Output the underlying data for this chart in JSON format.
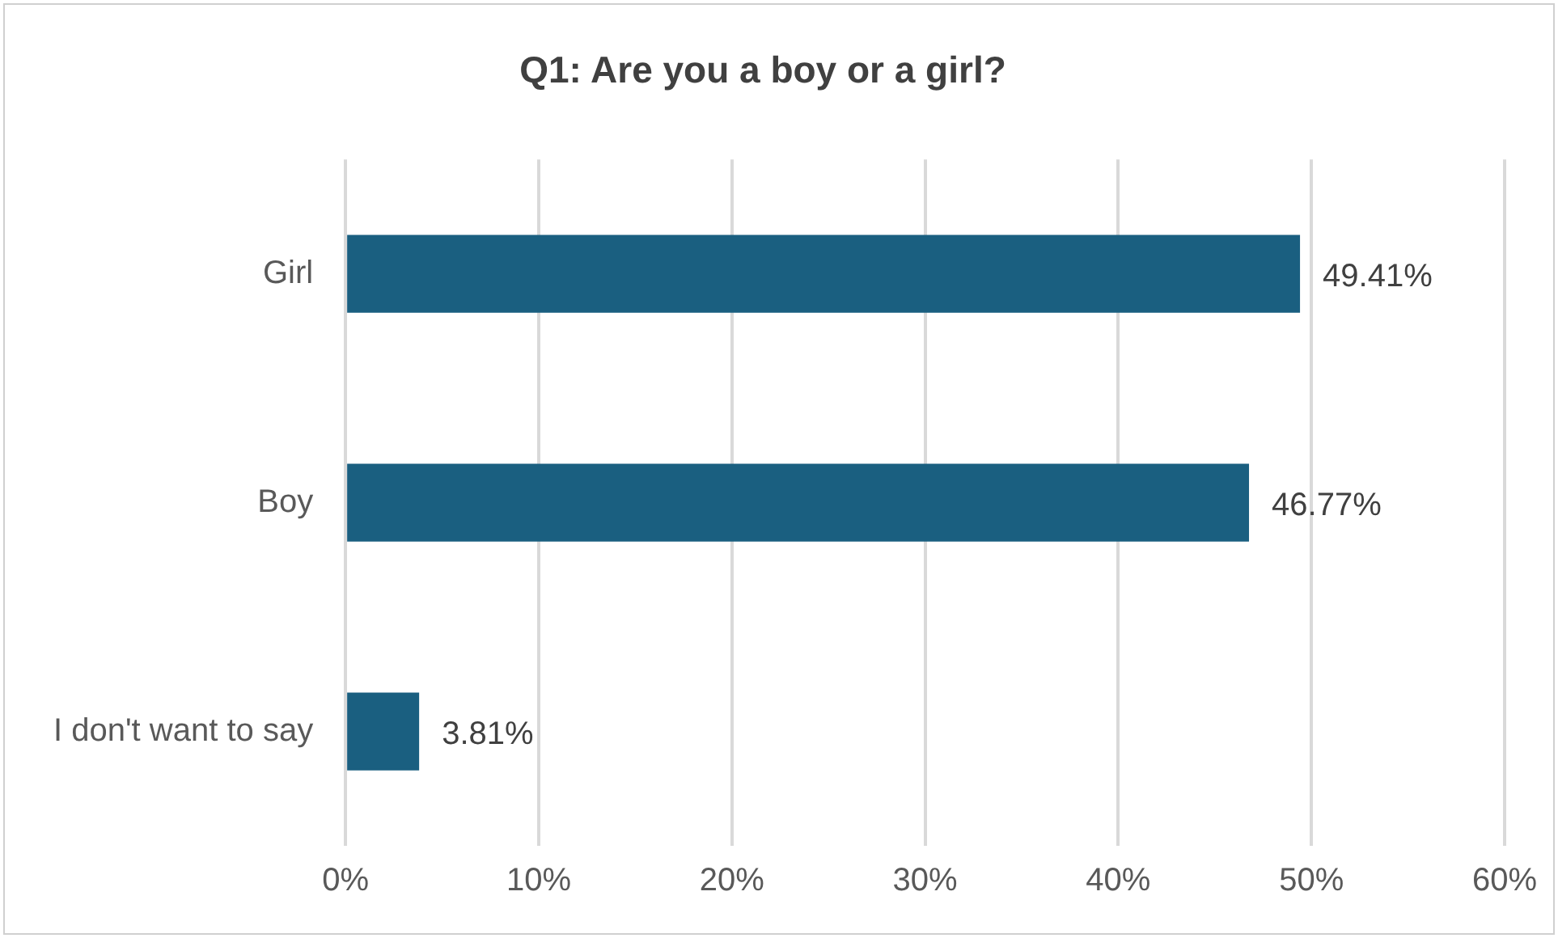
{
  "chart_data": {
    "type": "bar",
    "orientation": "horizontal",
    "title": "Q1: Are you a boy or a girl?",
    "categories": [
      "Girl",
      "Boy",
      "I don't want to say"
    ],
    "values": [
      49.41,
      46.77,
      3.81
    ],
    "color": "#1a5f80",
    "value_labels": [
      "49.41%",
      "46.77%",
      "3.81%"
    ],
    "xlim": [
      0,
      60
    ],
    "xticks": [
      {
        "value": 0,
        "label": "0%"
      },
      {
        "value": 10,
        "label": "10%"
      },
      {
        "value": 20,
        "label": "20%"
      },
      {
        "value": 30,
        "label": "30%"
      },
      {
        "value": 40,
        "label": "40%"
      },
      {
        "value": 50,
        "label": "50%"
      },
      {
        "value": 60,
        "label": "60%"
      }
    ],
    "grid": "x",
    "legend": false
  }
}
